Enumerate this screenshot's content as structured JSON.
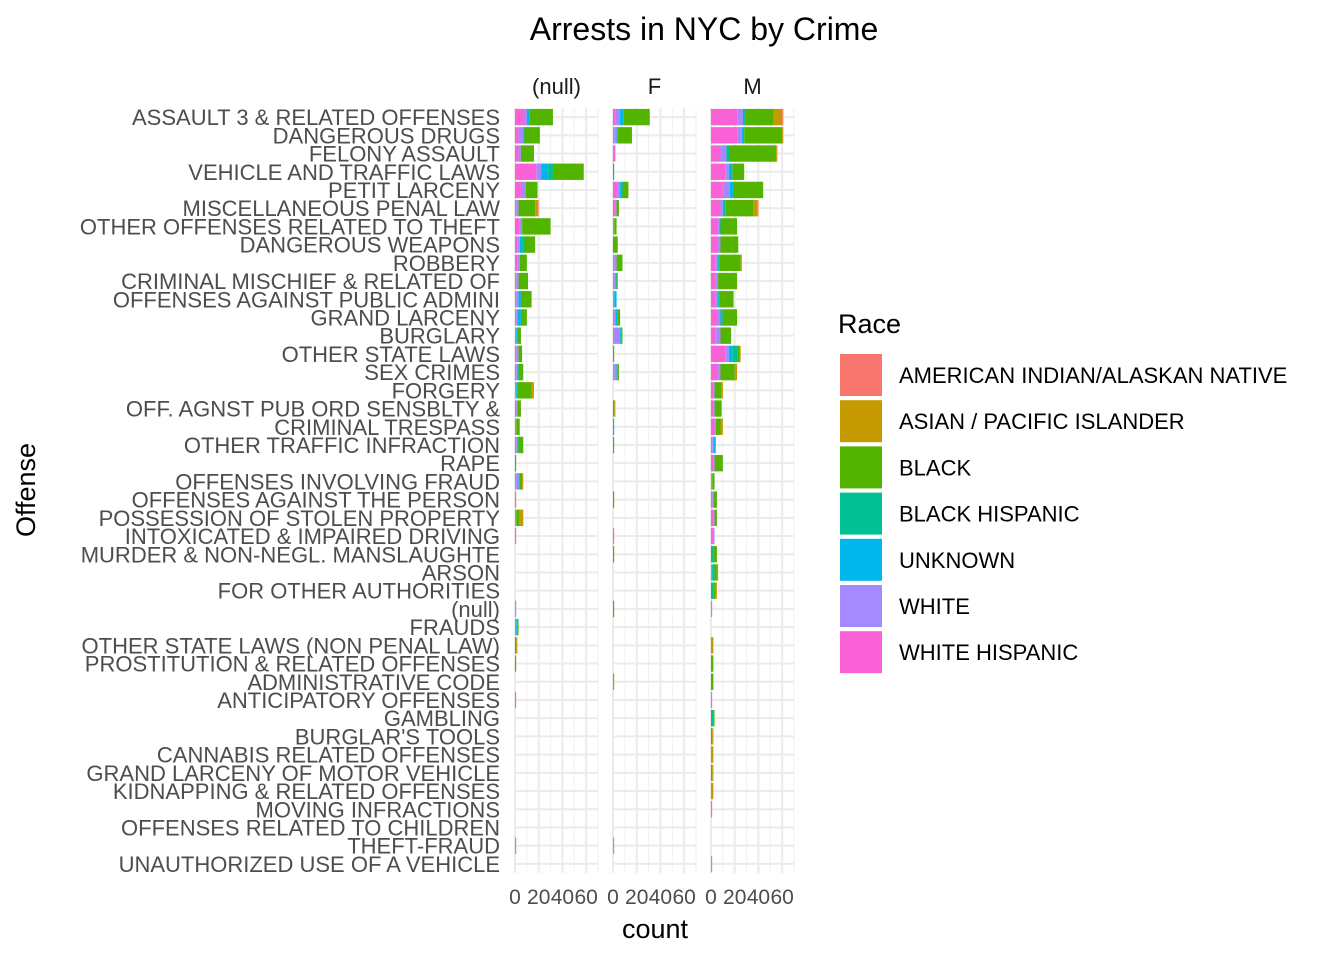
{
  "chart_data": {
    "type": "bar",
    "orientation": "horizontal",
    "stacked": true,
    "title": "Arrests in NYC by Crime",
    "xlabel": "count",
    "ylabel": "Offense",
    "xlim": [
      0,
      70
    ],
    "x_ticks": [
      0,
      20,
      40,
      60
    ],
    "x_tick_labels": [
      "0",
      "20",
      "40",
      "60"
    ],
    "grid": true,
    "facets": [
      "(null)",
      "F",
      "M"
    ],
    "legend": {
      "title": "Race",
      "position": "right",
      "entries": [
        {
          "name": "AMERICAN INDIAN/ALASKAN NATIVE",
          "color": "#F8766D"
        },
        {
          "name": "ASIAN / PACIFIC ISLANDER",
          "color": "#C49A00"
        },
        {
          "name": "BLACK",
          "color": "#53B400"
        },
        {
          "name": "BLACK HISPANIC",
          "color": "#00C094"
        },
        {
          "name": "UNKNOWN",
          "color": "#00B6EB"
        },
        {
          "name": "WHITE",
          "color": "#A58AFF"
        },
        {
          "name": "WHITE HISPANIC",
          "color": "#FB61D7"
        }
      ]
    },
    "categories": [
      "ASSAULT 3 & RELATED OFFENSES",
      "DANGEROUS DRUGS",
      "FELONY ASSAULT",
      "VEHICLE AND TRAFFIC LAWS",
      "PETIT LARCENY",
      "MISCELLANEOUS PENAL LAW",
      "OTHER OFFENSES RELATED TO THEFT",
      "DANGEROUS WEAPONS",
      "ROBBERY",
      "CRIMINAL MISCHIEF & RELATED OF",
      "OFFENSES AGAINST PUBLIC ADMINI",
      "GRAND LARCENY",
      "BURGLARY",
      "OTHER STATE LAWS",
      "SEX CRIMES",
      "FORGERY",
      "OFF. AGNST PUB ORD SENSBLTY &",
      "CRIMINAL TRESPASS",
      "OTHER TRAFFIC INFRACTION",
      "RAPE",
      "OFFENSES INVOLVING FRAUD",
      "OFFENSES AGAINST THE PERSON",
      "POSSESSION OF STOLEN PROPERTY",
      "INTOXICATED & IMPAIRED DRIVING",
      "MURDER & NON-NEGL. MANSLAUGHTE",
      "ARSON",
      "FOR OTHER AUTHORITIES",
      "(null)",
      "FRAUDS",
      "OTHER STATE LAWS (NON PENAL LAW)",
      "PROSTITUTION & RELATED OFFENSES",
      "ADMINISTRATIVE CODE",
      "ANTICIPATORY OFFENSES",
      "GAMBLING",
      "BURGLAR'S TOOLS",
      "CANNABIS RELATED OFFENSES",
      "GRAND LARCENY OF MOTOR VEHICLE",
      "KIDNAPPING & RELATED OFFENSES",
      "MOVING INFRACTIONS",
      "OFFENSES RELATED TO CHILDREN",
      "THEFT-FRAUD",
      "UNAUTHORIZED USE OF A VEHICLE"
    ],
    "series_order": [
      "WHITE HISPANIC",
      "WHITE",
      "UNKNOWN",
      "BLACK HISPANIC",
      "BLACK",
      "ASIAN / PACIFIC ISLANDER",
      "AMERICAN INDIAN/ALASKAN NATIVE"
    ],
    "panels": {
      "(null)": {
        "WHITE HISPANIC": [
          8,
          3,
          3,
          18,
          5,
          1,
          4,
          2,
          2,
          1,
          1,
          1,
          0,
          1,
          1,
          0,
          1,
          1,
          1,
          0,
          1,
          0,
          0,
          1,
          0,
          0,
          0,
          0,
          0,
          0,
          0,
          0,
          1,
          0,
          0,
          0,
          0,
          0,
          0,
          0,
          1,
          0
        ],
        "WHITE": [
          2,
          4,
          2,
          4,
          4,
          2,
          2,
          2,
          2,
          2,
          2,
          1,
          1,
          2,
          1,
          1,
          1,
          0,
          1,
          0,
          2,
          0,
          1,
          0,
          0,
          0,
          0,
          1,
          1,
          0,
          0,
          0,
          0,
          0,
          0,
          0,
          0,
          0,
          0,
          0,
          0,
          0
        ],
        "UNKNOWN": [
          2,
          0,
          0,
          6,
          0,
          0,
          0,
          2,
          0,
          0,
          2,
          3,
          1,
          0,
          1,
          1,
          0,
          0,
          0,
          0,
          1,
          0,
          0,
          0,
          0,
          0,
          0,
          0,
          1,
          0,
          0,
          0,
          0,
          0,
          0,
          0,
          0,
          0,
          0,
          0,
          0,
          0
        ],
        "BLACK HISPANIC": [
          0,
          1,
          0,
          4,
          0,
          0,
          0,
          2,
          0,
          0,
          0,
          0,
          0,
          0,
          0,
          0,
          0,
          0,
          1,
          0,
          0,
          0,
          0,
          0,
          0,
          0,
          0,
          0,
          0,
          0,
          0,
          0,
          0,
          0,
          0,
          0,
          0,
          0,
          0,
          0,
          0,
          0
        ],
        "BLACK": [
          20,
          13,
          11,
          26,
          10,
          14,
          24,
          9,
          6,
          8,
          9,
          5,
          3,
          3,
          4,
          12,
          3,
          3,
          4,
          1,
          2,
          0,
          3,
          0,
          0,
          0,
          0,
          0,
          1,
          1,
          1,
          0,
          0,
          0,
          0,
          0,
          0,
          0,
          0,
          0,
          0,
          0
        ],
        "ASIAN / PACIFIC ISLANDER": [
          0,
          0,
          0,
          0,
          0,
          2,
          0,
          0,
          0,
          0,
          0,
          0,
          0,
          0,
          0,
          2,
          0,
          0,
          0,
          0,
          1,
          0,
          3,
          0,
          0,
          0,
          0,
          0,
          0,
          1,
          0,
          0,
          0,
          0,
          0,
          0,
          0,
          0,
          0,
          0,
          0,
          0
        ],
        "AMERICAN INDIAN/ALASKAN NATIVE": [
          0,
          0,
          0,
          0,
          0,
          1,
          0,
          0,
          0,
          0,
          0,
          0,
          0,
          0,
          0,
          0,
          0,
          0,
          0,
          0,
          0,
          1,
          0,
          0,
          0,
          0,
          0,
          0,
          0,
          0,
          0,
          0,
          0,
          0,
          0,
          0,
          0,
          0,
          0,
          0,
          0,
          0
        ]
      },
      "F": {
        "WHITE HISPANIC": [
          2,
          1,
          2,
          0,
          4,
          2,
          1,
          0,
          1,
          1,
          0,
          1,
          0,
          0,
          1,
          0,
          0,
          0,
          0,
          0,
          0,
          0,
          0,
          1,
          0,
          0,
          0,
          0,
          0,
          0,
          0,
          0,
          0,
          0,
          0,
          0,
          0,
          0,
          0,
          0,
          0,
          0
        ],
        "WHITE": [
          4,
          2,
          0,
          0,
          2,
          1,
          0,
          0,
          2,
          1,
          1,
          1,
          6,
          0,
          2,
          0,
          0,
          0,
          0,
          0,
          0,
          0,
          0,
          0,
          0,
          0,
          0,
          0,
          0,
          0,
          0,
          0,
          0,
          0,
          0,
          0,
          0,
          0,
          0,
          0,
          1,
          0
        ],
        "UNKNOWN": [
          3,
          1,
          0,
          0,
          2,
          0,
          0,
          0,
          0,
          1,
          2,
          2,
          1,
          0,
          1,
          0,
          0,
          1,
          0,
          0,
          0,
          0,
          0,
          0,
          0,
          0,
          0,
          0,
          0,
          0,
          0,
          0,
          0,
          0,
          0,
          0,
          0,
          0,
          0,
          0,
          0,
          0
        ],
        "BLACK HISPANIC": [
          0,
          0,
          0,
          1,
          0,
          0,
          0,
          0,
          0,
          0,
          0,
          0,
          0,
          0,
          0,
          0,
          0,
          0,
          0,
          0,
          0,
          0,
          0,
          0,
          0,
          0,
          0,
          0,
          0,
          0,
          0,
          0,
          0,
          0,
          0,
          0,
          0,
          0,
          0,
          0,
          0,
          0
        ],
        "BLACK": [
          22,
          12,
          0,
          0,
          5,
          2,
          2,
          4,
          5,
          1,
          0,
          2,
          1,
          1,
          1,
          0,
          1,
          0,
          1,
          0,
          0,
          1,
          0,
          0,
          1,
          0,
          0,
          1,
          0,
          0,
          0,
          0,
          0,
          0,
          0,
          0,
          0,
          0,
          0,
          0,
          0,
          0
        ],
        "ASIAN / PACIFIC ISLANDER": [
          0,
          0,
          0,
          0,
          0,
          0,
          0,
          0,
          0,
          0,
          0,
          0,
          0,
          0,
          0,
          0,
          1,
          0,
          0,
          0,
          0,
          0,
          0,
          0,
          0,
          0,
          0,
          0,
          0,
          0,
          0,
          1,
          0,
          0,
          0,
          0,
          0,
          0,
          0,
          0,
          0,
          0
        ],
        "AMERICAN INDIAN/ALASKAN NATIVE": [
          0,
          0,
          0,
          0,
          0,
          0,
          0,
          0,
          0,
          0,
          0,
          0,
          0,
          0,
          0,
          0,
          0,
          0,
          0,
          0,
          0,
          0,
          0,
          0,
          0,
          0,
          0,
          0,
          0,
          0,
          0,
          0,
          0,
          0,
          0,
          0,
          0,
          0,
          0,
          0,
          0,
          0
        ]
      },
      "M": {
        "WHITE HISPANIC": [
          22,
          22,
          8,
          12,
          10,
          8,
          6,
          6,
          4,
          4,
          4,
          5,
          4,
          12,
          6,
          2,
          2,
          3,
          1,
          2,
          0,
          1,
          2,
          2,
          0,
          0,
          0,
          0,
          0,
          0,
          0,
          0,
          1,
          0,
          0,
          0,
          0,
          0,
          1,
          0,
          0,
          0
        ],
        "WHITE": [
          5,
          4,
          5,
          3,
          6,
          2,
          1,
          2,
          2,
          2,
          2,
          3,
          4,
          3,
          2,
          1,
          1,
          1,
          1,
          1,
          1,
          1,
          1,
          1,
          0,
          1,
          0,
          1,
          0,
          0,
          0,
          0,
          0,
          0,
          0,
          0,
          0,
          0,
          0,
          0,
          0,
          1
        ],
        "UNKNOWN": [
          0,
          2,
          0,
          3,
          3,
          1,
          1,
          0,
          0,
          0,
          0,
          0,
          0,
          3,
          0,
          0,
          0,
          0,
          2,
          0,
          0,
          0,
          0,
          0,
          0,
          0,
          0,
          0,
          0,
          0,
          0,
          0,
          0,
          0,
          0,
          0,
          0,
          0,
          0,
          0,
          0,
          0
        ],
        "BLACK HISPANIC": [
          2,
          0,
          3,
          0,
          0,
          1,
          0,
          0,
          1,
          0,
          1,
          2,
          0,
          4,
          0,
          0,
          0,
          0,
          0,
          0,
          0,
          0,
          0,
          0,
          2,
          2,
          2,
          0,
          0,
          0,
          0,
          0,
          0,
          2,
          0,
          0,
          0,
          0,
          0,
          0,
          0,
          0
        ],
        "BLACK": [
          24,
          32,
          39,
          10,
          25,
          24,
          14,
          15,
          18,
          16,
          12,
          12,
          9,
          2,
          12,
          6,
          6,
          4,
          0,
          7,
          2,
          3,
          2,
          0,
          3,
          2,
          2,
          0,
          0,
          0,
          2,
          2,
          0,
          1,
          1,
          0,
          1,
          0,
          0,
          0,
          0,
          0
        ],
        "ASIAN / PACIFIC ISLANDER": [
          7,
          1,
          1,
          0,
          0,
          3,
          0,
          0,
          1,
          0,
          0,
          0,
          0,
          1,
          2,
          1,
          0,
          2,
          0,
          0,
          0,
          0,
          0,
          0,
          0,
          1,
          1,
          0,
          0,
          2,
          0,
          0,
          0,
          0,
          1,
          2,
          1,
          2,
          0,
          0,
          0,
          0
        ],
        "AMERICAN INDIAN/ALASKAN NATIVE": [
          1,
          0,
          0,
          0,
          0,
          1,
          0,
          0,
          0,
          0,
          0,
          0,
          0,
          0,
          0,
          0,
          0,
          0,
          0,
          0,
          0,
          0,
          0,
          0,
          0,
          0,
          0,
          0,
          0,
          0,
          0,
          0,
          0,
          0,
          0,
          0,
          0,
          0,
          0,
          0,
          0,
          0
        ]
      }
    }
  }
}
